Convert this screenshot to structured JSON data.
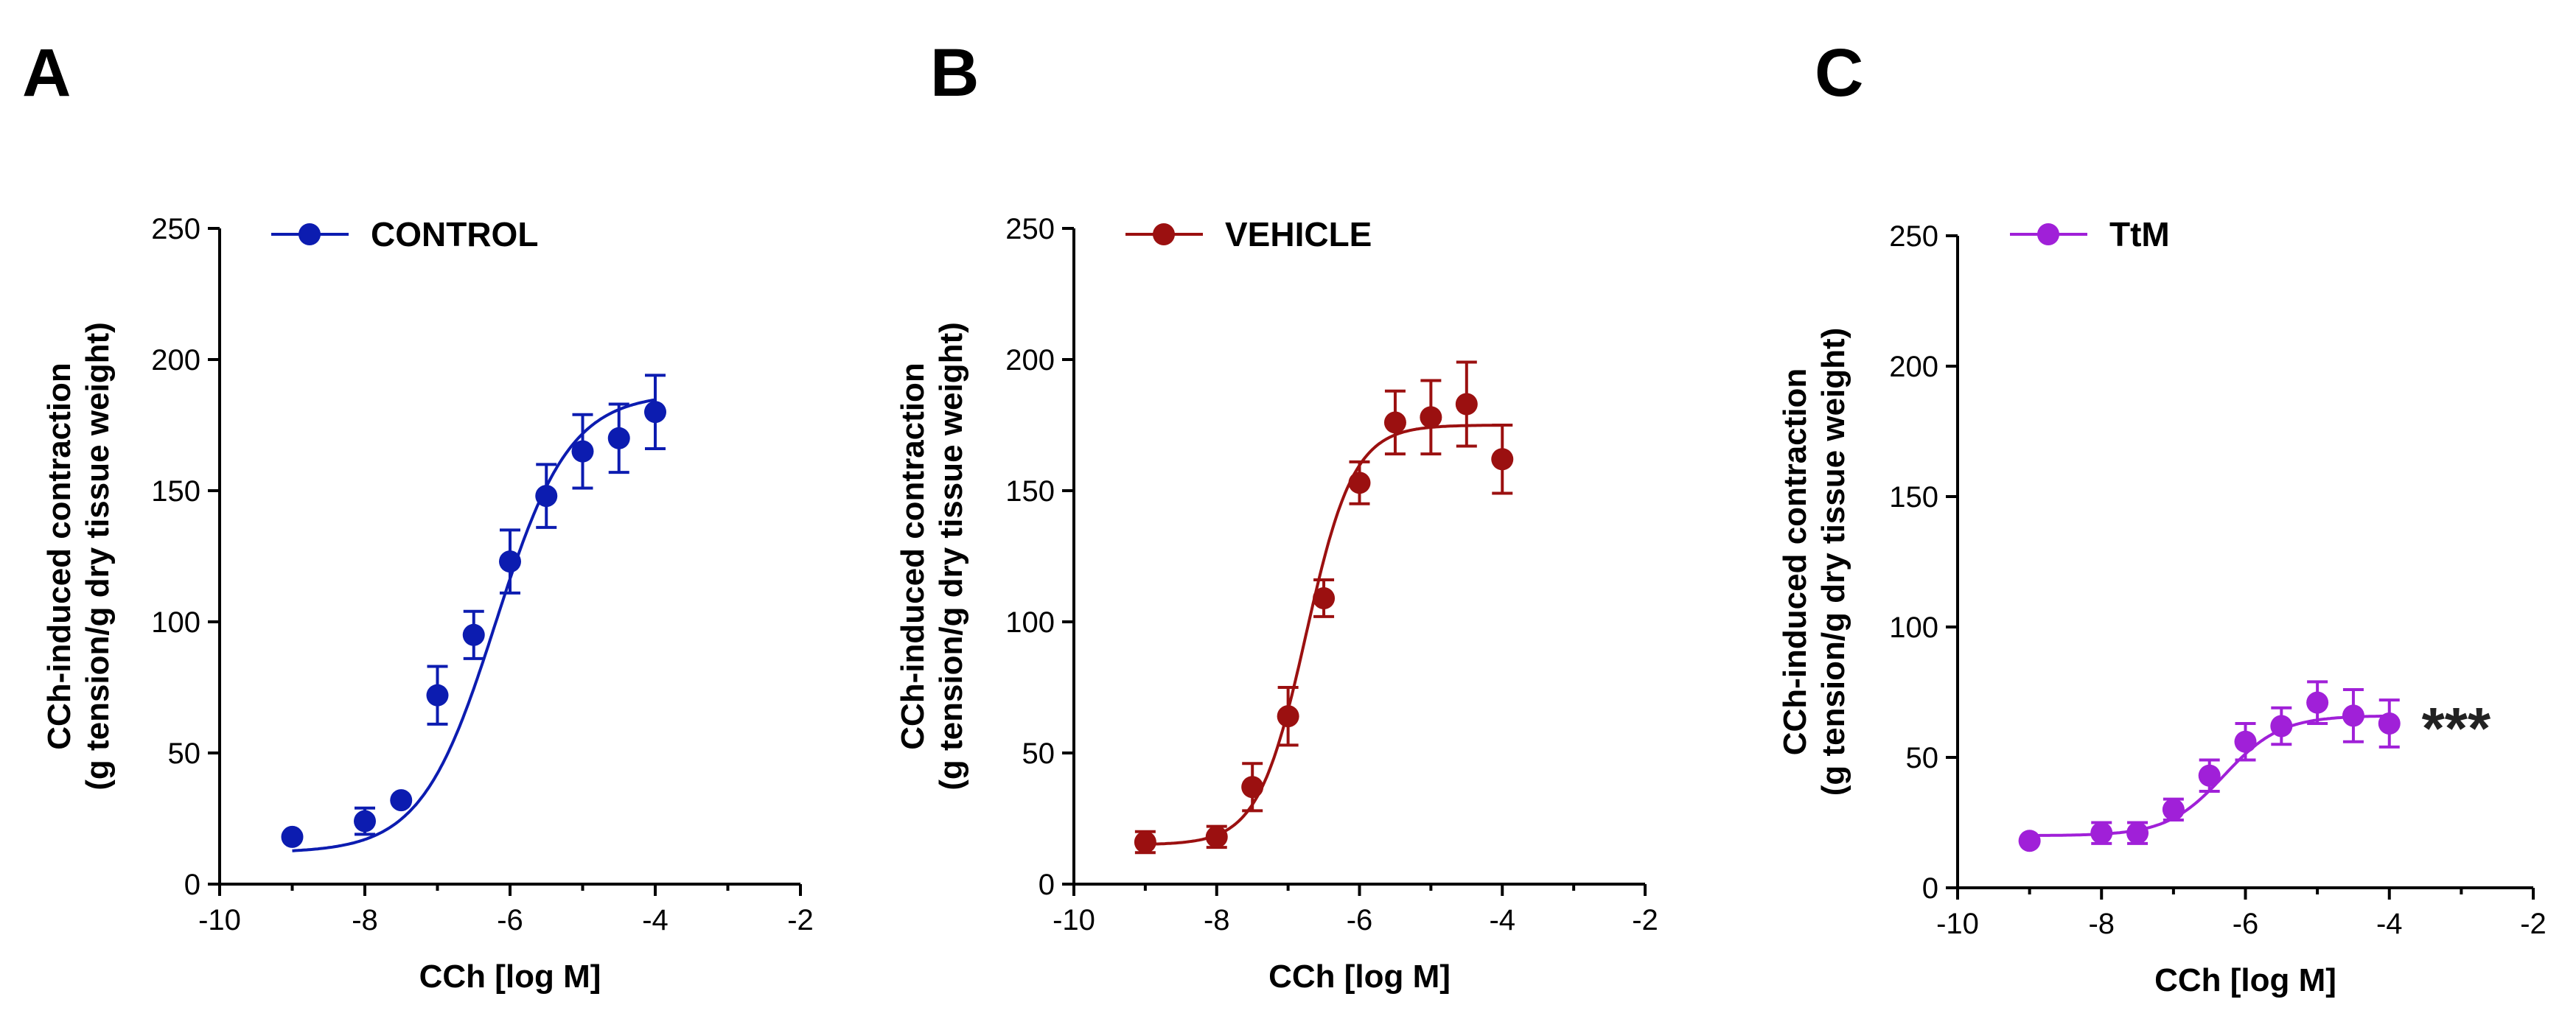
{
  "chart_data": [
    {
      "panel": "A",
      "type": "scatter",
      "series": [
        {
          "name": "CONTROL",
          "color": "#0c1cb0",
          "x": [
            -9,
            -8,
            -7.5,
            -7,
            -6.5,
            -6,
            -5.5,
            -5,
            -4.5,
            -4
          ],
          "y": [
            18,
            24,
            32,
            72,
            95,
            123,
            148,
            165,
            170,
            180
          ],
          "err": [
            0,
            5,
            0,
            11,
            9,
            12,
            12,
            14,
            13,
            14
          ],
          "fit": {
            "bottom": 12,
            "top": 187,
            "logEC50": -6.2,
            "hill": 0.85
          }
        }
      ],
      "xlabel": "CCh [log M]",
      "ylabel_lines": [
        "CCh-induced contraction",
        "(g tension/g dry tissue weight)"
      ],
      "xlim": [
        -10,
        -2
      ],
      "ylim": [
        0,
        250
      ],
      "xticks": [
        "-10",
        "-8",
        "-6",
        "-4",
        "-2"
      ],
      "yticks": [
        "0",
        "50",
        "100",
        "150",
        "200",
        "250"
      ],
      "annotation": ""
    },
    {
      "panel": "B",
      "type": "scatter",
      "series": [
        {
          "name": "VEHICLE",
          "color": "#9b1010",
          "x": [
            -9,
            -8,
            -7.5,
            -7,
            -6.5,
            -6,
            -5.5,
            -5,
            -4.5,
            -4
          ],
          "y": [
            16,
            18,
            37,
            64,
            109,
            153,
            176,
            178,
            183,
            162
          ],
          "err": [
            4,
            4,
            9,
            11,
            7,
            8,
            12,
            14,
            16,
            13
          ],
          "fit": {
            "bottom": 15,
            "top": 175,
            "logEC50": -6.75,
            "hill": 1.3
          }
        }
      ],
      "xlabel": "CCh [log M]",
      "ylabel_lines": [
        "CCh-induced contraction",
        "(g tension/g dry tissue weight)"
      ],
      "xlim": [
        -10,
        -2
      ],
      "ylim": [
        0,
        250
      ],
      "xticks": [
        "-10",
        "-8",
        "-6",
        "-4",
        "-2"
      ],
      "yticks": [
        "0",
        "50",
        "100",
        "150",
        "200",
        "250"
      ],
      "annotation": ""
    },
    {
      "panel": "C",
      "type": "scatter",
      "series": [
        {
          "name": "TtM",
          "color": "#a020d8",
          "x": [
            -9,
            -8,
            -7.5,
            -7,
            -6.5,
            -6,
            -5.5,
            -5,
            -4.5,
            -4
          ],
          "y": [
            18,
            21,
            21,
            30,
            43,
            56,
            62,
            71,
            66,
            63
          ],
          "err": [
            0,
            4,
            4,
            4,
            6,
            7,
            7,
            8,
            10,
            9
          ],
          "fit": {
            "bottom": 20,
            "top": 66,
            "logEC50": -6.3,
            "hill": 1.1
          }
        }
      ],
      "xlabel": "CCh [log M]",
      "ylabel_lines": [
        "CCh-induced contraction",
        "(g tension/g dry tissue weight)"
      ],
      "xlim": [
        -10,
        -2
      ],
      "ylim": [
        0,
        250
      ],
      "xticks": [
        "-10",
        "-8",
        "-6",
        "-4",
        "-2"
      ],
      "yticks": [
        "0",
        "50",
        "100",
        "150",
        "200",
        "250"
      ],
      "annotation": "***"
    }
  ]
}
